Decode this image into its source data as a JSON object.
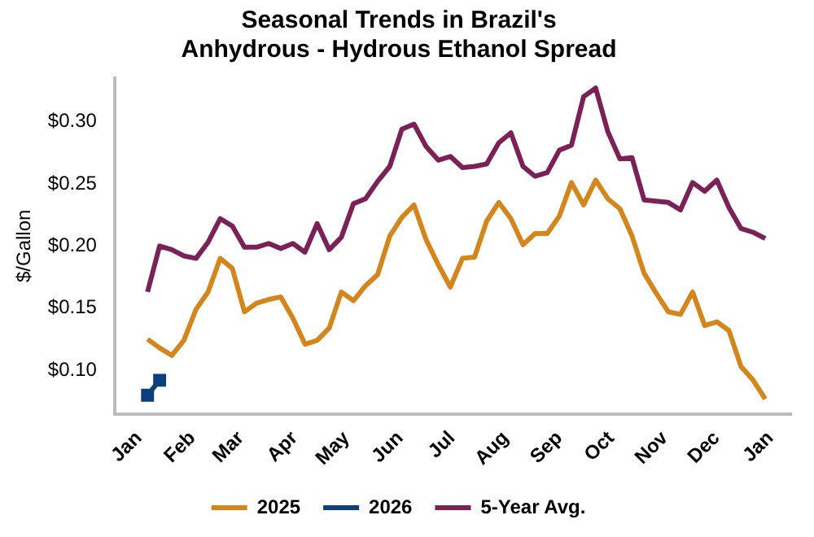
{
  "chart_data": {
    "type": "line",
    "title": "Seasonal Trends in Brazil's\nAnhydrous - Hydrous Ethanol Spread",
    "ylabel": "$/Gallon",
    "x": [
      "2025-01-06",
      "2025-01-13",
      "2025-01-20",
      "2025-01-27",
      "2025-02-03",
      "2025-02-10",
      "2025-02-17",
      "2025-02-24",
      "2025-03-03",
      "2025-03-10",
      "2025-03-17",
      "2025-03-24",
      "2025-03-31",
      "2025-04-07",
      "2025-04-14",
      "2025-04-21",
      "2025-04-28",
      "2025-05-05",
      "2025-05-12",
      "2025-05-19",
      "2025-05-26",
      "2025-06-02",
      "2025-06-09",
      "2025-06-16",
      "2025-06-23",
      "2025-06-30",
      "2025-07-07",
      "2025-07-14",
      "2025-07-21",
      "2025-07-28",
      "2025-08-04",
      "2025-08-11",
      "2025-08-18",
      "2025-08-25",
      "2025-09-01",
      "2025-09-08",
      "2025-09-15",
      "2025-09-22",
      "2025-09-29",
      "2025-10-06",
      "2025-10-13",
      "2025-10-20",
      "2025-10-27",
      "2025-11-03",
      "2025-11-10",
      "2025-11-17",
      "2025-11-24",
      "2025-12-01",
      "2025-12-08",
      "2025-12-15",
      "2025-12-22",
      "2025-12-29"
    ],
    "series": [
      {
        "name": "2025",
        "color": "#d4861c",
        "marker": "none",
        "values": [
          0.125,
          0.118,
          0.112,
          0.124,
          0.149,
          0.163,
          0.19,
          0.182,
          0.147,
          0.154,
          0.157,
          0.159,
          0.142,
          0.121,
          0.124,
          0.134,
          0.163,
          0.156,
          0.168,
          0.177,
          0.208,
          0.223,
          0.233,
          0.205,
          0.185,
          0.167,
          0.19,
          0.191,
          0.22,
          0.235,
          0.222,
          0.201,
          0.21,
          0.21,
          0.224,
          0.251,
          0.233,
          0.253,
          0.238,
          0.23,
          0.208,
          0.178,
          0.162,
          0.147,
          0.145,
          0.163,
          0.136,
          0.139,
          0.132,
          0.103,
          0.092,
          0.077
        ]
      },
      {
        "name": "2026",
        "color": "#0d3f7d",
        "marker": "square",
        "x": [
          "2025-01-06",
          "2025-01-13"
        ],
        "values": [
          0.08,
          0.092
        ]
      },
      {
        "name": "5-Year Avg.",
        "color": "#7b2157",
        "marker": "none",
        "values": [
          0.163,
          0.2,
          0.197,
          0.192,
          0.19,
          0.203,
          0.222,
          0.216,
          0.199,
          0.199,
          0.202,
          0.198,
          0.202,
          0.195,
          0.218,
          0.197,
          0.207,
          0.234,
          0.238,
          0.252,
          0.264,
          0.294,
          0.298,
          0.28,
          0.269,
          0.272,
          0.263,
          0.264,
          0.266,
          0.283,
          0.291,
          0.264,
          0.256,
          0.259,
          0.277,
          0.281,
          0.32,
          0.327,
          0.292,
          0.27,
          0.271,
          0.237,
          0.236,
          0.235,
          0.229,
          0.251,
          0.244,
          0.253,
          0.231,
          0.214,
          0.211,
          0.206
        ]
      }
    ],
    "xlim": [
      "2024-12-18",
      "2026-01-13"
    ],
    "xticks": [
      {
        "value": "2025-01-01",
        "label": "Jan"
      },
      {
        "value": "2025-02-01",
        "label": "Feb"
      },
      {
        "value": "2025-03-01",
        "label": "Mar"
      },
      {
        "value": "2025-04-01",
        "label": "Apr"
      },
      {
        "value": "2025-05-01",
        "label": "May"
      },
      {
        "value": "2025-06-01",
        "label": "Jun"
      },
      {
        "value": "2025-07-01",
        "label": "Jul"
      },
      {
        "value": "2025-08-01",
        "label": "Aug"
      },
      {
        "value": "2025-09-01",
        "label": "Sep"
      },
      {
        "value": "2025-10-01",
        "label": "Oct"
      },
      {
        "value": "2025-11-01",
        "label": "Nov"
      },
      {
        "value": "2025-12-01",
        "label": "Dec"
      },
      {
        "value": "2026-01-01",
        "label": "Jan"
      }
    ],
    "ylim": [
      0.065,
      0.335
    ],
    "yticks": [
      {
        "value": 0.1,
        "label": "$0.10"
      },
      {
        "value": 0.15,
        "label": "$0.15"
      },
      {
        "value": 0.2,
        "label": "$0.20"
      },
      {
        "value": 0.25,
        "label": "$0.25"
      },
      {
        "value": 0.3,
        "label": "$0.30"
      }
    ],
    "grid": false,
    "legend": "bottom",
    "line_style": "solid"
  }
}
